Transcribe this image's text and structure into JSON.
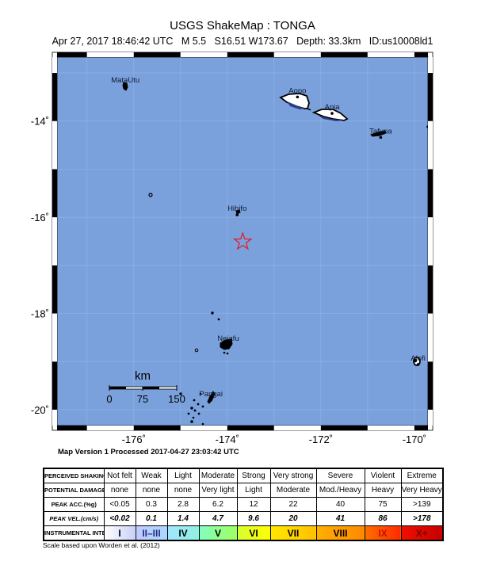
{
  "header": {
    "title": "USGS ShakeMap : TONGA",
    "subtitle": "Apr 27, 2017 18:46:42 UTC   M 5.5   S16.51 W173.67   Depth: 33.3km   ID:us10008ld1"
  },
  "map": {
    "ocean_color": "#7aa1dc",
    "extent": {
      "lon": [
        -177.64,
        -169.71
      ],
      "lat": [
        -20.33,
        -12.67
      ]
    },
    "x_ticks": [
      {
        "value": -176,
        "label": "-176˚"
      },
      {
        "value": -174,
        "label": "-174˚"
      },
      {
        "value": -172,
        "label": "-172˚"
      },
      {
        "value": -170,
        "label": "-170˚"
      }
    ],
    "y_ticks": [
      {
        "value": -14,
        "label": "-14˚"
      },
      {
        "value": -16,
        "label": "-16˚"
      },
      {
        "value": -18,
        "label": "-18˚"
      },
      {
        "value": -20,
        "label": "-20˚"
      }
    ],
    "epicenter": {
      "lon": -173.67,
      "lat": -16.51,
      "icon": "star-icon",
      "color": "#e0202a"
    },
    "places": [
      {
        "name": "MataUtu",
        "lon": -176.18,
        "lat": -13.28
      },
      {
        "name": "Aopo",
        "lon": -172.5,
        "lat": -13.5
      },
      {
        "name": "Apia",
        "lon": -171.76,
        "lat": -13.84
      },
      {
        "name": "Tafuna",
        "lon": -170.72,
        "lat": -14.34
      },
      {
        "name": "Hihifo",
        "lon": -173.79,
        "lat": -15.95
      },
      {
        "name": "Neiafu",
        "lon": -173.98,
        "lat": -18.65
      },
      {
        "name": "Alofi",
        "lon": -169.92,
        "lat": -19.06
      },
      {
        "name": "Pangai",
        "lon": -174.35,
        "lat": -19.8
      }
    ],
    "scalebar": {
      "unit": "km",
      "labels": [
        "0",
        "75",
        "150"
      ]
    }
  },
  "version_text": "Map Version 1 Processed 2017-04-27 23:03:42 UTC",
  "legend": {
    "rows": [
      {
        "header": "PERCEIVED SHAKING",
        "cells": [
          "Not felt",
          "Weak",
          "Light",
          "Moderate",
          "Strong",
          "Very strong",
          "Severe",
          "Violent",
          "Extreme"
        ]
      },
      {
        "header": "POTENTIAL DAMAGE",
        "cells": [
          "none",
          "none",
          "none",
          "Very light",
          "Light",
          "Moderate",
          "Mod./Heavy",
          "Heavy",
          "Very Heavy"
        ]
      },
      {
        "header": "PEAK ACC.(%g)",
        "cells": [
          "<0.05",
          "0.3",
          "2.8",
          "6.2",
          "12",
          "22",
          "40",
          "75",
          ">139"
        ]
      },
      {
        "header": "PEAK VEL.(cm/s)",
        "cells": [
          "<0.02",
          "0.1",
          "1.4",
          "4.7",
          "9.6",
          "20",
          "41",
          "86",
          ">178"
        ]
      },
      {
        "header": "INSTRUMENTAL INTENSITY",
        "cells": [
          "I",
          "II–III",
          "IV",
          "V",
          "VI",
          "VII",
          "VIII",
          "IX",
          "X+"
        ]
      }
    ],
    "intensity_colors": [
      [
        "#ffffff",
        "#c8d0f8"
      ],
      [
        "#bfccff",
        "#a8d8ff"
      ],
      [
        "#a0e6ff",
        "#90f0e0"
      ],
      [
        "#80ffc0",
        "#a0ff60"
      ],
      [
        "#d8ff30",
        "#ffff00"
      ],
      [
        "#ffe800",
        "#ffc000"
      ],
      [
        "#ffb000",
        "#ff8800"
      ],
      [
        "#ff7000",
        "#ff2a00"
      ],
      [
        "#ee1000",
        "#c80000"
      ]
    ],
    "note": "Scale based upon Worden et al. (2012)"
  }
}
